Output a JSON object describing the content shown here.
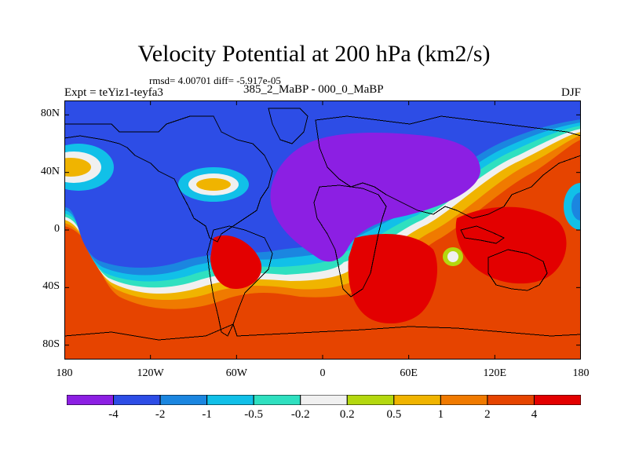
{
  "title": "Velocity Potential at 200 hPa (km2/s)",
  "stats_line": "rmsd= 4.00701 diff= -5.917e-05",
  "experiment_label": "Expt = teYiz1-teyfa3",
  "center_label": "385_2_MaBP - 000_0_MaBP",
  "season_label": "DJF",
  "y_axis": {
    "ticks": [
      {
        "lat": 80,
        "label": "80N"
      },
      {
        "lat": 40,
        "label": "40N"
      },
      {
        "lat": 0,
        "label": "0"
      },
      {
        "lat": -40,
        "label": "40S"
      },
      {
        "lat": -80,
        "label": "80S"
      }
    ]
  },
  "x_axis": {
    "ticks": [
      {
        "lon": -180,
        "label": "180"
      },
      {
        "lon": -120,
        "label": "120W"
      },
      {
        "lon": -60,
        "label": "60W"
      },
      {
        "lon": 0,
        "label": "0"
      },
      {
        "lon": 60,
        "label": "60E"
      },
      {
        "lon": 120,
        "label": "120E"
      },
      {
        "lon": 180,
        "label": "180"
      }
    ]
  },
  "colorbar": {
    "colors": [
      "#8c1fe3",
      "#2d4de6",
      "#1b86e0",
      "#11c0e8",
      "#2fe0c0",
      "#f0f0f0",
      "#b4d80f",
      "#f0b400",
      "#f07a00",
      "#e64400",
      "#e30000"
    ],
    "labels": [
      "-4",
      "-2",
      "-1",
      "-0.5",
      "-0.2",
      "0.2",
      "0.5",
      "1",
      "2",
      "4"
    ]
  }
}
